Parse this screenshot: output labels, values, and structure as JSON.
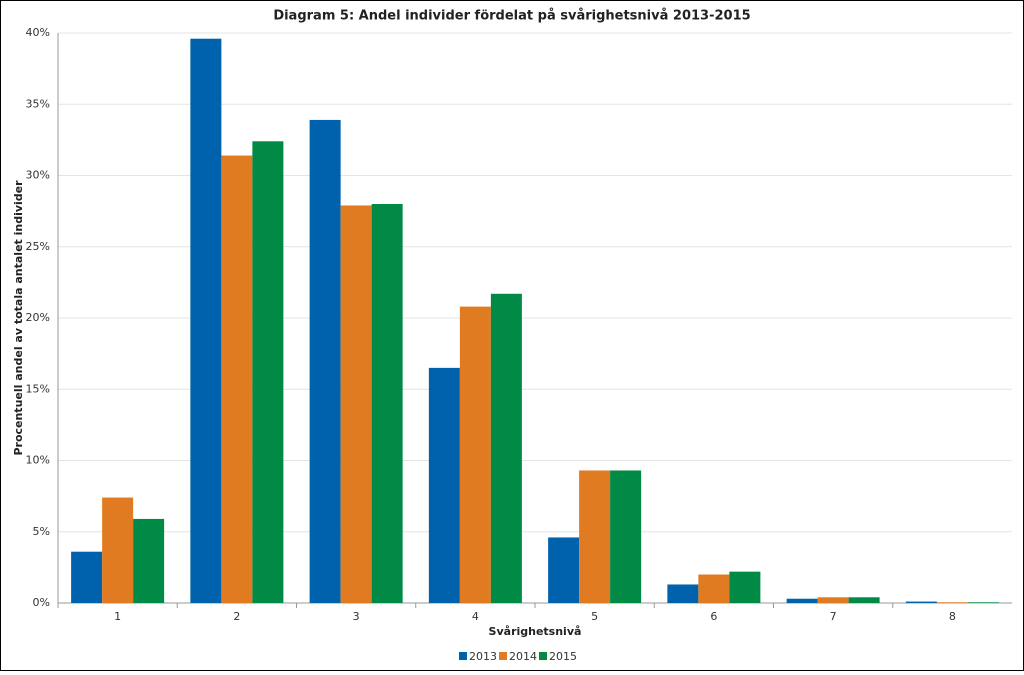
{
  "chart_data": {
    "type": "bar",
    "title": "Diagram 5: Andel individer fördelat på svårighetsnivå 2013-2015",
    "x_label": "Svårighetsnivå",
    "y_label": "Procentuell andel av totala antalet individer",
    "categories": [
      "1",
      "2",
      "3",
      "4",
      "5",
      "6",
      "7",
      "8"
    ],
    "series": [
      {
        "name": "2013",
        "color": "#0062ac",
        "values": [
          3.6,
          39.6,
          33.9,
          16.5,
          4.6,
          1.3,
          0.3,
          0.1
        ]
      },
      {
        "name": "2014",
        "color": "#e07b22",
        "values": [
          7.4,
          31.4,
          27.9,
          20.8,
          9.3,
          2.0,
          0.4,
          0.05
        ]
      },
      {
        "name": "2015",
        "color": "#008a45",
        "values": [
          5.9,
          32.4,
          28.0,
          21.7,
          9.3,
          2.2,
          0.4,
          0.05
        ]
      }
    ],
    "ylim": [
      0,
      40
    ],
    "yticks": [
      {
        "value": 0,
        "label": "0%"
      },
      {
        "value": 5,
        "label": "5%"
      },
      {
        "value": 10,
        "label": "10%"
      },
      {
        "value": 15,
        "label": "15%"
      },
      {
        "value": 20,
        "label": "20%"
      },
      {
        "value": 25,
        "label": "25%"
      },
      {
        "value": 30,
        "label": "30%"
      },
      {
        "value": 35,
        "label": "35%"
      },
      {
        "value": 40,
        "label": "40%"
      }
    ],
    "grid": true,
    "legend": "bottom"
  }
}
